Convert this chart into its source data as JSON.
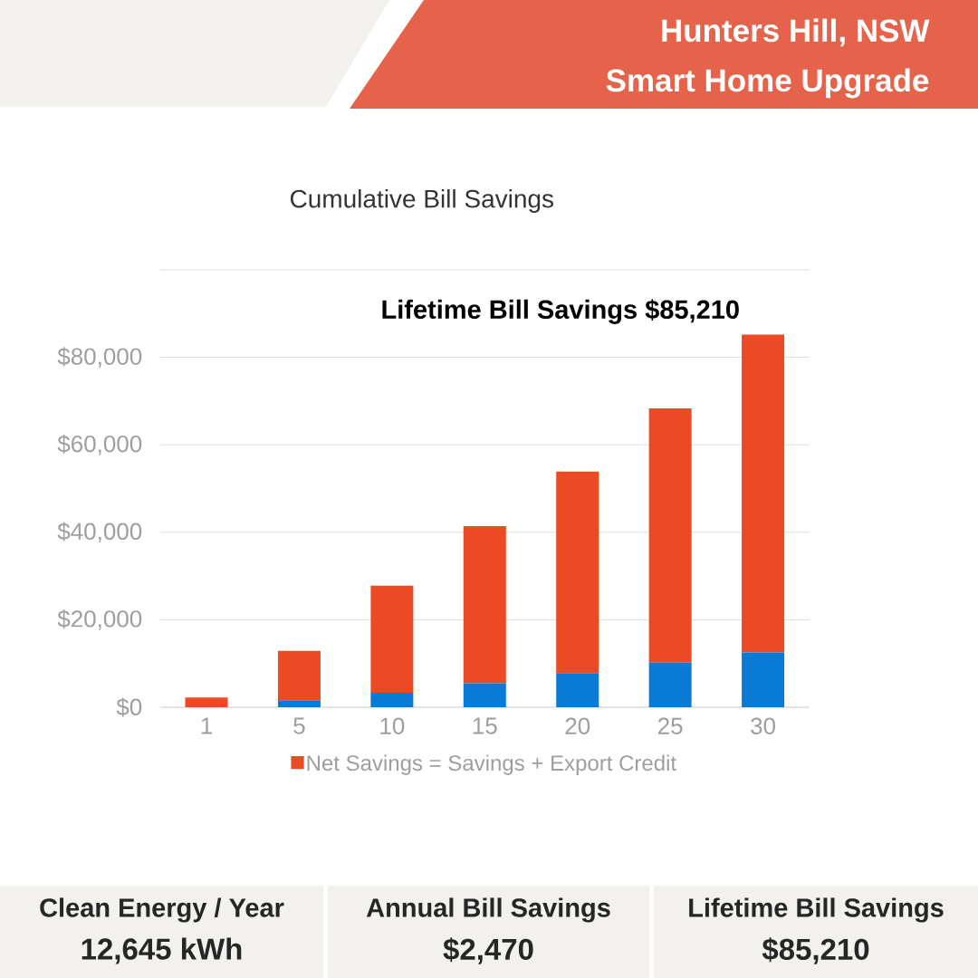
{
  "chart_data": {
    "type": "bar",
    "title": "Cumulative Bill Savings",
    "categories": [
      "1",
      "5",
      "10",
      "15",
      "20",
      "25",
      "30"
    ],
    "stacked": true,
    "series": [
      {
        "color": "#0a7bd4",
        "values": [
          null,
          1600,
          3300,
          5500,
          7800,
          10200,
          12500
        ]
      },
      {
        "name": "Net Savings = Savings + Export Credit",
        "color": "#eb4a25",
        "values": [
          2200,
          11300,
          24500,
          35900,
          46100,
          58100,
          72700
        ]
      }
    ],
    "ylim": [
      0,
      100000
    ],
    "yticks": [
      {
        "value": 0,
        "label": "$0"
      },
      {
        "value": 20000,
        "label": "$20,000"
      },
      {
        "value": 40000,
        "label": "$40,000"
      },
      {
        "value": 60000,
        "label": "$60,000"
      },
      {
        "value": 80000,
        "label": "$80,000"
      },
      {
        "value": 100000,
        "label": null
      }
    ],
    "grid": "y",
    "legend": "bottom",
    "annotations": [
      {
        "text": "Lifetime Bill Savings $85,210",
        "x": "30",
        "y": 85210
      },
      "Hunters Hill, NSW",
      "Smart Home Upgrade",
      "Clean Energy / Year",
      "12,645 kWh",
      "Annual Bill Savings",
      "$2,470",
      "Lifetime Bill Savings",
      "$85,210"
    ]
  }
}
